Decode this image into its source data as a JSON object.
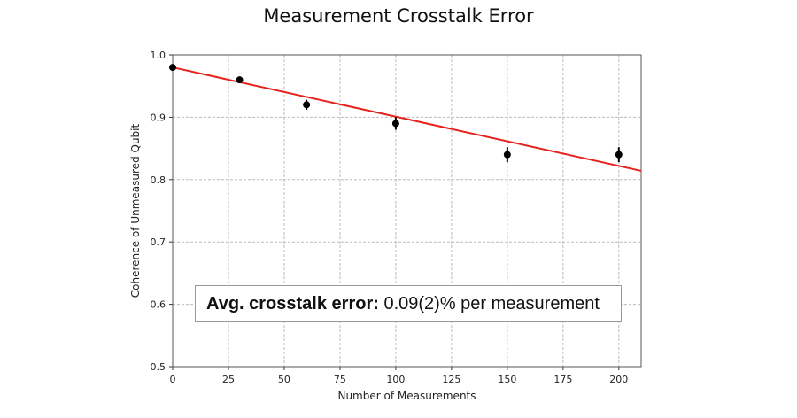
{
  "chart_data": {
    "type": "scatter",
    "title": "Measurement Crosstalk Error",
    "xlabel": "Number of Measurements",
    "ylabel": "Coherence of Unmeasured Qubit",
    "xlim": [
      0,
      210
    ],
    "ylim": [
      0.5,
      1.0
    ],
    "xticks": [
      0,
      25,
      50,
      75,
      100,
      125,
      150,
      175,
      200
    ],
    "yticks": [
      0.5,
      0.6,
      0.7,
      0.8,
      0.9,
      1.0
    ],
    "grid": true,
    "points": {
      "x": [
        0,
        30,
        60,
        100,
        150,
        200
      ],
      "y": [
        0.98,
        0.96,
        0.92,
        0.89,
        0.84,
        0.84
      ],
      "yerr": [
        0.004,
        0.004,
        0.008,
        0.01,
        0.012,
        0.012
      ],
      "color": "#000000"
    },
    "fit_line": {
      "x": [
        0,
        210
      ],
      "y": [
        0.98,
        0.814
      ],
      "color": "#e8211d"
    },
    "annotation": {
      "bold": "Avg. crosstalk error:",
      "text": " 0.09(2)% per measurement"
    }
  }
}
